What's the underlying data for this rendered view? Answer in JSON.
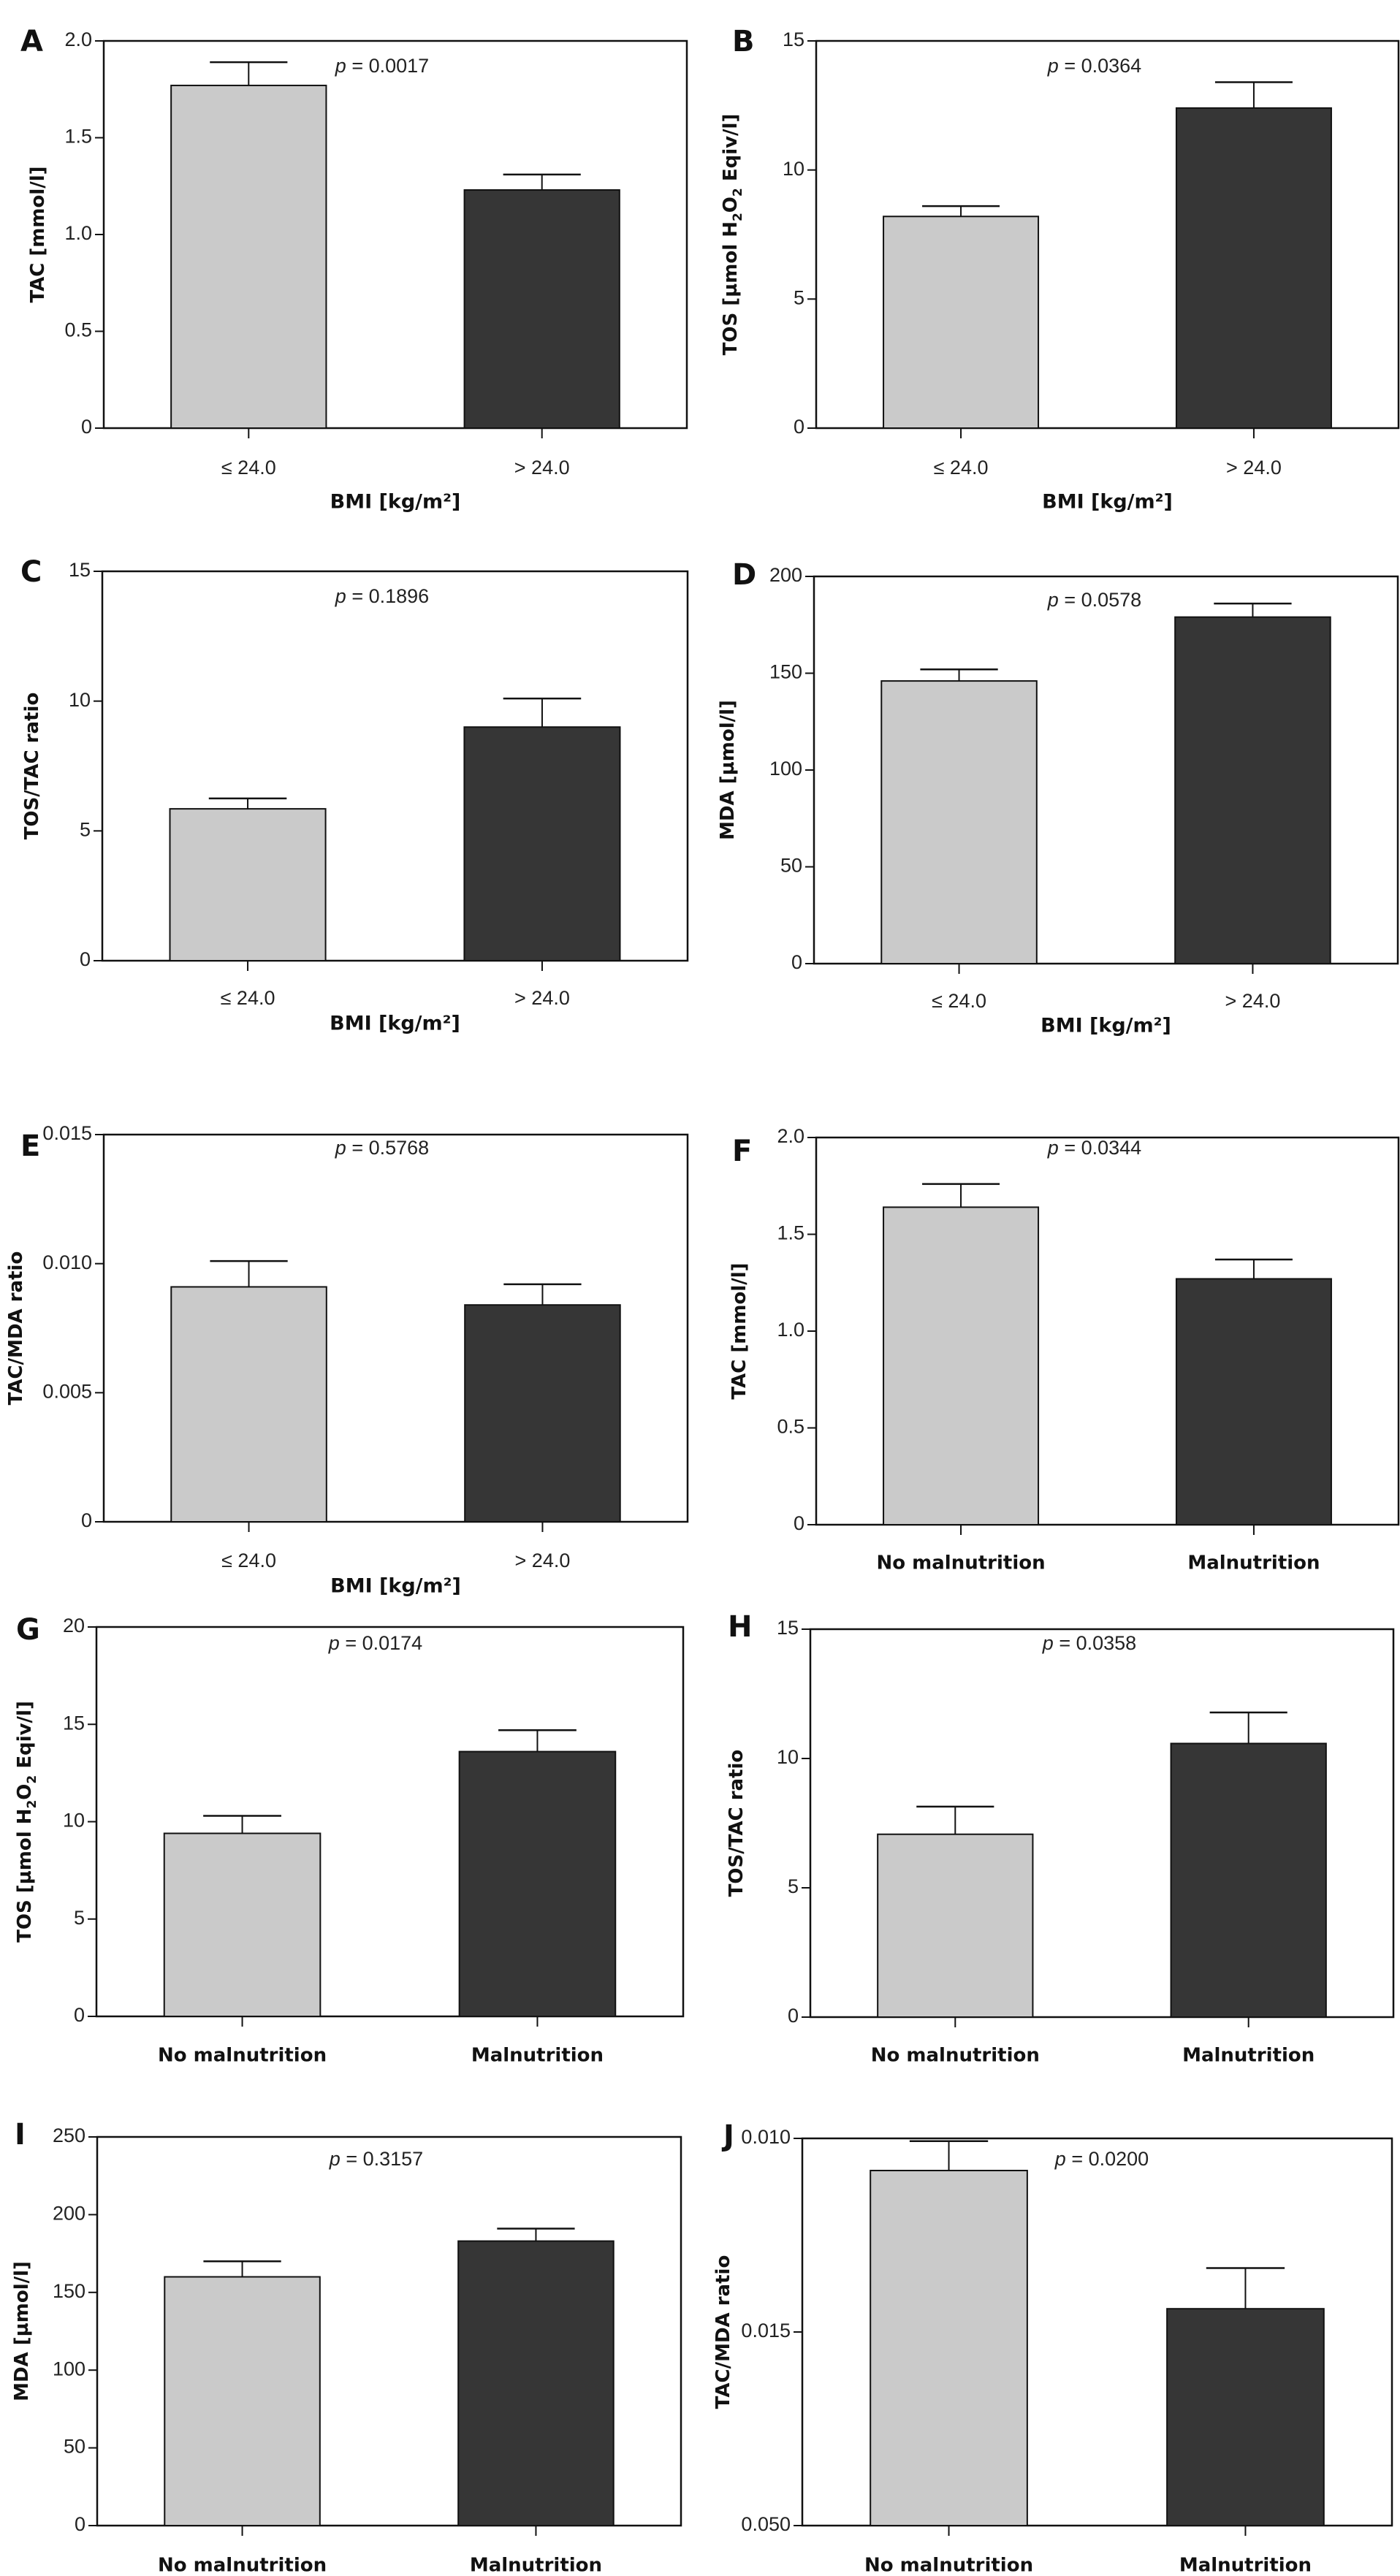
{
  "figure": {
    "bar_colors": {
      "group1": "#cacaca",
      "group2": "#363636",
      "outline": "#111111"
    }
  },
  "chart_data": [
    {
      "panel": "A",
      "type": "bar",
      "categories": [
        "≤ 24.0",
        "> 24.0"
      ],
      "values": [
        1.77,
        1.23
      ],
      "errors_upper": [
        1.89,
        1.31
      ],
      "title": "",
      "xlabel": "BMI [kg/m²]",
      "ylabel": "TAC [mmol/l]",
      "ylim": [
        0,
        2.0
      ],
      "yticks": [
        0,
        0.5,
        1.0,
        1.5,
        2.0
      ],
      "ytick_labels": [
        "0",
        "0.5",
        "1.0",
        "1.5",
        "2.0"
      ],
      "annotation": "p = 0.0017",
      "grid": false,
      "legend": "none"
    },
    {
      "panel": "B",
      "type": "bar",
      "categories": [
        "≤ 24.0",
        "> 24.0"
      ],
      "values": [
        8.2,
        12.4
      ],
      "errors_upper": [
        8.6,
        13.4
      ],
      "title": "",
      "xlabel": "BMI [kg/m²]",
      "ylabel": "TOS [µmol H₂O₂ Eqiv/l]",
      "ylim": [
        0,
        15
      ],
      "yticks": [
        0,
        5,
        10,
        15
      ],
      "ytick_labels": [
        "0",
        "5",
        "10",
        "15"
      ],
      "annotation": "p = 0.0364",
      "grid": false,
      "legend": "none"
    },
    {
      "panel": "C",
      "type": "bar",
      "categories": [
        "≤ 24.0",
        "> 24.0"
      ],
      "values": [
        5.85,
        9.0
      ],
      "errors_upper": [
        6.25,
        10.1
      ],
      "title": "",
      "xlabel": "BMI [kg/m²]",
      "ylabel": "TOS/TAC ratio",
      "ylim": [
        0,
        15
      ],
      "yticks": [
        0,
        5,
        10,
        15
      ],
      "ytick_labels": [
        "0",
        "5",
        "10",
        "15"
      ],
      "annotation": "p = 0.1896",
      "grid": false,
      "legend": "none"
    },
    {
      "panel": "D",
      "type": "bar",
      "categories": [
        "≤ 24.0",
        "> 24.0"
      ],
      "values": [
        146,
        179
      ],
      "errors_upper": [
        152,
        186
      ],
      "title": "",
      "xlabel": "BMI [kg/m²]",
      "ylabel": "MDA [µmol/l]",
      "ylim": [
        0,
        200
      ],
      "yticks": [
        0,
        50,
        100,
        150,
        200
      ],
      "ytick_labels": [
        "0",
        "50",
        "100",
        "150",
        "200"
      ],
      "annotation": "p = 0.0578",
      "grid": false,
      "legend": "none"
    },
    {
      "panel": "E",
      "type": "bar",
      "categories": [
        "≤ 24.0",
        "> 24.0"
      ],
      "values": [
        0.0091,
        0.0084
      ],
      "errors_upper": [
        0.0101,
        0.0092
      ],
      "title": "",
      "xlabel": "BMI [kg/m²]",
      "ylabel": "TAC/MDA ratio",
      "ylim": [
        0,
        0.015
      ],
      "yticks": [
        0,
        0.005,
        0.01,
        0.015
      ],
      "ytick_labels": [
        "0",
        "0.005",
        "0.010",
        "0.015"
      ],
      "annotation": "p = 0.5768",
      "grid": false,
      "legend": "none"
    },
    {
      "panel": "F",
      "type": "bar",
      "categories": [
        "No malnutrition",
        "Malnutrition"
      ],
      "values": [
        1.64,
        1.27
      ],
      "errors_upper": [
        1.76,
        1.37
      ],
      "title": "",
      "xlabel": "",
      "ylabel": "TAC [mmol/l]",
      "ylim": [
        0,
        2.0
      ],
      "yticks": [
        0,
        0.5,
        1.0,
        1.5,
        2.0
      ],
      "ytick_labels": [
        "0",
        "0.5",
        "1.0",
        "1.5",
        "2.0"
      ],
      "annotation": "p = 0.0344",
      "grid": false,
      "legend": "none"
    },
    {
      "panel": "G",
      "type": "bar",
      "categories": [
        "No malnutrition",
        "Malnutrition"
      ],
      "values": [
        9.4,
        13.6
      ],
      "errors_upper": [
        10.3,
        14.7
      ],
      "title": "",
      "xlabel": "",
      "ylabel": "TOS [µmol H₂O₂ Eqiv/l]",
      "ylim": [
        0,
        20
      ],
      "yticks": [
        0,
        5,
        10,
        15,
        20
      ],
      "ytick_labels": [
        "0",
        "5",
        "10",
        "15",
        "20"
      ],
      "annotation": "p = 0.0174",
      "grid": false,
      "legend": "none"
    },
    {
      "panel": "H",
      "type": "bar",
      "categories": [
        "No malnutrition",
        "Malnutrition"
      ],
      "values": [
        7.07,
        10.58
      ],
      "errors_upper": [
        8.14,
        11.78
      ],
      "title": "",
      "xlabel": "",
      "ylabel": "TOS/TAC ratio",
      "ylim": [
        0,
        15
      ],
      "yticks": [
        0,
        5,
        10,
        15
      ],
      "ytick_labels": [
        "0",
        "5",
        "10",
        "15"
      ],
      "annotation": "p = 0.0358",
      "grid": false,
      "legend": "none"
    },
    {
      "panel": "I",
      "type": "bar",
      "categories": [
        "No malnutrition",
        "Malnutrition"
      ],
      "values": [
        160,
        183
      ],
      "errors_upper": [
        170,
        191
      ],
      "title": "",
      "xlabel": "",
      "ylabel": "MDA [µmol/l]",
      "ylim": [
        0,
        250
      ],
      "yticks": [
        0,
        50,
        100,
        150,
        200,
        250
      ],
      "ytick_labels": [
        "0",
        "50",
        "100",
        "150",
        "200",
        "250"
      ],
      "annotation": "p = 0.3157",
      "grid": false,
      "legend": "none"
    },
    {
      "panel": "J",
      "type": "bar",
      "categories": [
        "No malnutrition",
        "Malnutrition"
      ],
      "values": [
        0.917,
        0.56
      ],
      "errors_upper": [
        0.993,
        0.665
      ],
      "value_units": "fraction of axis height (axis tick labels are printed non-monotonically)",
      "title": "",
      "xlabel": "",
      "ylabel": "TAC/MDA ratio",
      "ylim": [
        0,
        1
      ],
      "yticks": [
        0,
        0.5,
        1.0
      ],
      "ytick_labels": [
        "0.050",
        "0.015",
        "0.010"
      ],
      "annotation": "p = 0.0200",
      "grid": false,
      "legend": "none"
    }
  ]
}
